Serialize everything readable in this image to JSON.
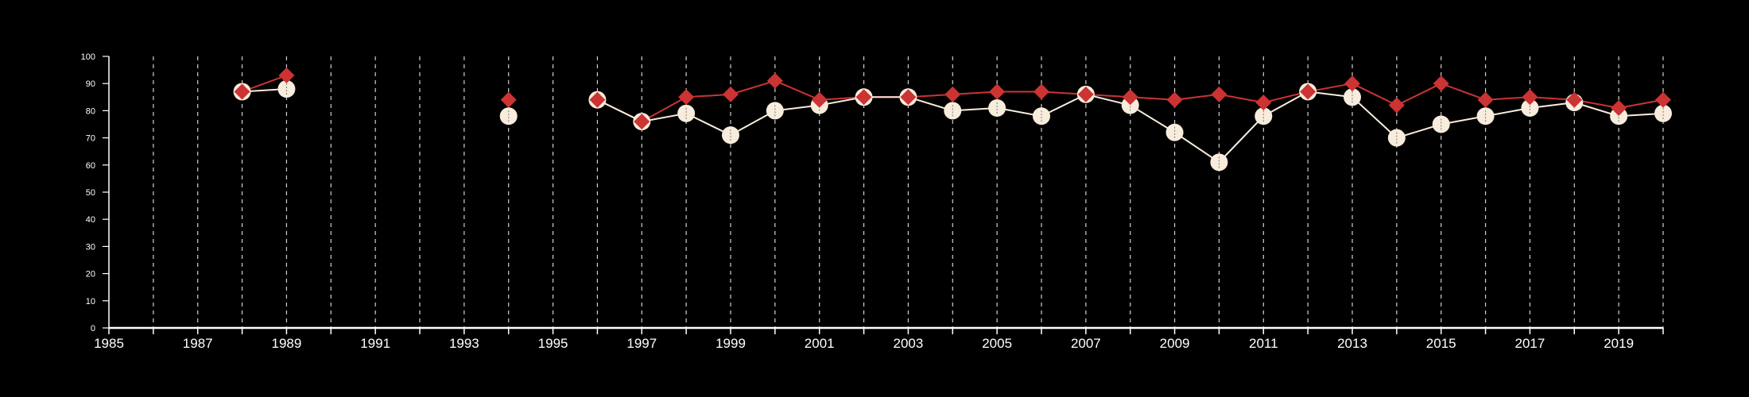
{
  "chart_data": {
    "type": "line",
    "xlim": [
      1985,
      2020
    ],
    "ylim": [
      0,
      100
    ],
    "yticks": [
      0,
      10,
      20,
      30,
      40,
      50,
      60,
      70,
      80,
      90,
      100
    ],
    "xtick_labels": [
      1985,
      1987,
      1989,
      1991,
      1993,
      1995,
      1997,
      1999,
      2001,
      2003,
      2005,
      2007,
      2009,
      2011,
      2013,
      2015,
      2017,
      2019
    ],
    "grid": "vertical dashed at every year",
    "series": [
      {
        "color": "#cc3333",
        "marker": "diamond",
        "points": [
          [
            1988,
            87
          ],
          [
            1989,
            93
          ],
          [
            1994,
            84
          ],
          [
            1996,
            84
          ],
          [
            1997,
            76
          ],
          [
            1998,
            85
          ],
          [
            1999,
            86
          ],
          [
            2000,
            91
          ],
          [
            2001,
            84
          ],
          [
            2002,
            85
          ],
          [
            2003,
            85
          ],
          [
            2004,
            86
          ],
          [
            2005,
            87
          ],
          [
            2006,
            87
          ],
          [
            2007,
            86
          ],
          [
            2008,
            85
          ],
          [
            2009,
            84
          ],
          [
            2010,
            86
          ],
          [
            2011,
            83
          ],
          [
            2012,
            87
          ],
          [
            2013,
            90
          ],
          [
            2014,
            82
          ],
          [
            2015,
            90
          ],
          [
            2016,
            84
          ],
          [
            2017,
            85
          ],
          [
            2018,
            84
          ],
          [
            2019,
            81
          ],
          [
            2020,
            84
          ]
        ]
      },
      {
        "color": "#f8ecdc",
        "marker": "circle",
        "points": [
          [
            1988,
            87
          ],
          [
            1989,
            88
          ],
          [
            1994,
            78
          ],
          [
            1996,
            84
          ],
          [
            1997,
            76
          ],
          [
            1998,
            79
          ],
          [
            1999,
            71
          ],
          [
            2000,
            80
          ],
          [
            2001,
            82
          ],
          [
            2002,
            85
          ],
          [
            2003,
            85
          ],
          [
            2004,
            80
          ],
          [
            2005,
            81
          ],
          [
            2006,
            78
          ],
          [
            2007,
            86
          ],
          [
            2008,
            82
          ],
          [
            2009,
            72
          ],
          [
            2010,
            61
          ],
          [
            2011,
            78
          ],
          [
            2012,
            87
          ],
          [
            2013,
            85
          ],
          [
            2014,
            70
          ],
          [
            2015,
            75
          ],
          [
            2016,
            78
          ],
          [
            2017,
            81
          ],
          [
            2018,
            83
          ],
          [
            2019,
            78
          ],
          [
            2020,
            79
          ]
        ]
      }
    ]
  }
}
